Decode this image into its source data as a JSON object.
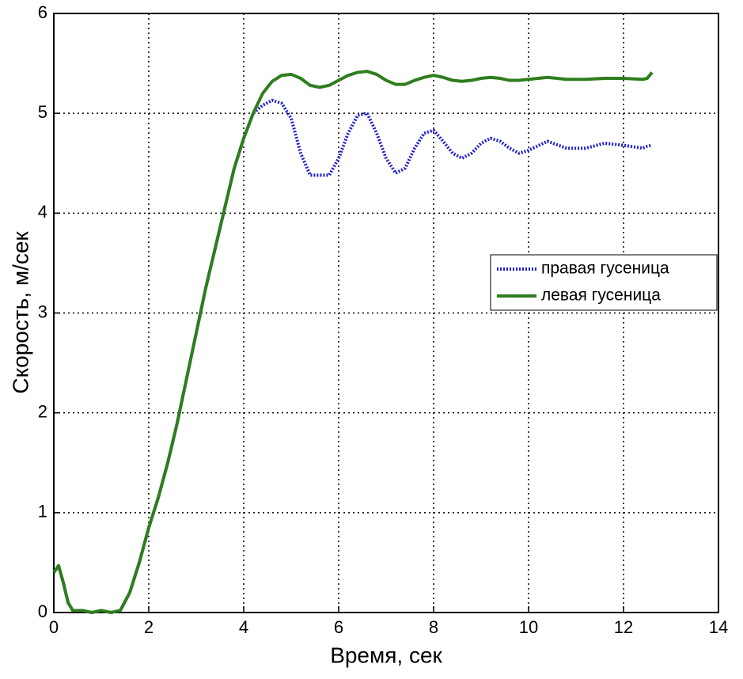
{
  "chart_data": {
    "type": "line",
    "xlabel": "Время, сек",
    "ylabel": "Скорость, м/сек",
    "x": [
      0,
      0.1,
      0.2,
      0.3,
      0.4,
      0.6,
      0.8,
      1.0,
      1.2,
      1.4,
      1.6,
      1.8,
      2.0,
      2.2,
      2.4,
      2.6,
      2.8,
      3.0,
      3.2,
      3.4,
      3.6,
      3.8,
      4.0,
      4.2,
      4.4,
      4.6,
      4.8,
      5.0,
      5.2,
      5.4,
      5.6,
      5.8,
      6.0,
      6.2,
      6.4,
      6.6,
      6.8,
      7.0,
      7.2,
      7.4,
      7.6,
      7.8,
      8.0,
      8.2,
      8.4,
      8.6,
      8.8,
      9.0,
      9.2,
      9.4,
      9.6,
      9.8,
      10.0,
      10.4,
      10.8,
      11.2,
      11.6,
      12.0,
      12.4,
      12.5,
      12.6
    ],
    "series": [
      {
        "name": "правая гусеница",
        "color": "#1f1fcc",
        "dash": "dotted",
        "values": [
          0.4,
          0.47,
          0.3,
          0.1,
          0.02,
          0.02,
          0.0,
          0.02,
          0.0,
          0.02,
          0.2,
          0.5,
          0.85,
          1.15,
          1.5,
          1.9,
          2.35,
          2.8,
          3.25,
          3.65,
          4.05,
          4.45,
          4.75,
          5.0,
          5.08,
          5.13,
          5.1,
          4.95,
          4.6,
          4.38,
          4.38,
          4.38,
          4.55,
          4.8,
          4.98,
          5.0,
          4.8,
          4.55,
          4.4,
          4.45,
          4.65,
          4.8,
          4.83,
          4.72,
          4.6,
          4.55,
          4.6,
          4.7,
          4.75,
          4.72,
          4.65,
          4.6,
          4.63,
          4.72,
          4.65,
          4.65,
          4.7,
          4.68,
          4.65,
          4.67,
          4.68
        ]
      },
      {
        "name": "левая гусеница",
        "color": "#2e7d1e",
        "dash": "solid",
        "values": [
          0.4,
          0.47,
          0.3,
          0.1,
          0.02,
          0.02,
          0.0,
          0.02,
          0.0,
          0.02,
          0.2,
          0.5,
          0.85,
          1.15,
          1.5,
          1.9,
          2.35,
          2.8,
          3.25,
          3.65,
          4.05,
          4.45,
          4.75,
          5.0,
          5.2,
          5.32,
          5.38,
          5.39,
          5.35,
          5.28,
          5.26,
          5.28,
          5.33,
          5.38,
          5.41,
          5.42,
          5.39,
          5.33,
          5.29,
          5.29,
          5.33,
          5.36,
          5.38,
          5.36,
          5.33,
          5.32,
          5.33,
          5.35,
          5.36,
          5.35,
          5.33,
          5.33,
          5.34,
          5.36,
          5.34,
          5.34,
          5.35,
          5.35,
          5.34,
          5.35,
          5.41
        ]
      }
    ],
    "xlim": [
      0,
      14
    ],
    "xticks": [
      0,
      2,
      4,
      6,
      8,
      10,
      12,
      14
    ],
    "ylim": [
      0,
      6
    ],
    "yticks": [
      0,
      1,
      2,
      3,
      4,
      5,
      6
    ],
    "grid": true,
    "legend": "right"
  }
}
